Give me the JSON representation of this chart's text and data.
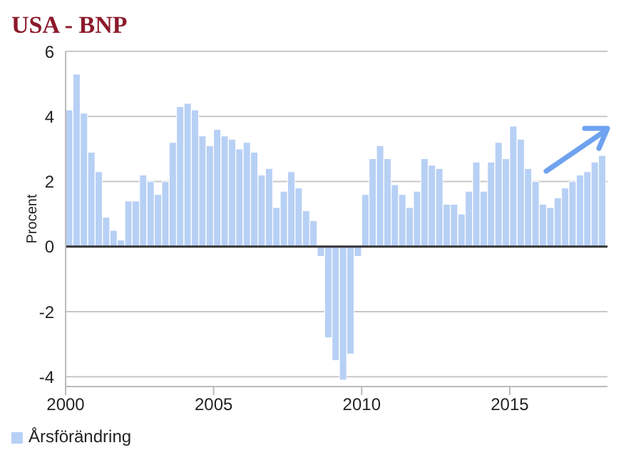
{
  "chart_data": {
    "type": "bar",
    "title": "USA - BNP",
    "ylabel": "Procent",
    "x": [
      2000.125,
      2000.375,
      2000.625,
      2000.875,
      2001.125,
      2001.375,
      2001.625,
      2001.875,
      2002.125,
      2002.375,
      2002.625,
      2002.875,
      2003.125,
      2003.375,
      2003.625,
      2003.875,
      2004.125,
      2004.375,
      2004.625,
      2004.875,
      2005.125,
      2005.375,
      2005.625,
      2005.875,
      2006.125,
      2006.375,
      2006.625,
      2006.875,
      2007.125,
      2007.375,
      2007.625,
      2007.875,
      2008.125,
      2008.375,
      2008.625,
      2008.875,
      2009.125,
      2009.375,
      2009.625,
      2009.875,
      2010.125,
      2010.375,
      2010.625,
      2010.875,
      2011.125,
      2011.375,
      2011.625,
      2011.875,
      2012.125,
      2012.375,
      2012.625,
      2012.875,
      2013.125,
      2013.375,
      2013.625,
      2013.875,
      2014.125,
      2014.375,
      2014.625,
      2014.875,
      2015.125,
      2015.375,
      2015.625,
      2015.875,
      2016.125,
      2016.375,
      2016.625,
      2016.875,
      2017.125,
      2017.375,
      2017.625,
      2017.875,
      2018.125
    ],
    "series": [
      {
        "name": "Årsförändring",
        "color": "#b7d0f5",
        "values": [
          4.2,
          5.3,
          4.1,
          2.9,
          2.3,
          0.9,
          0.5,
          0.2,
          1.4,
          1.4,
          2.2,
          2.0,
          1.6,
          2.0,
          3.2,
          4.3,
          4.4,
          4.2,
          3.4,
          3.1,
          3.6,
          3.4,
          3.3,
          3.0,
          3.2,
          2.9,
          2.2,
          2.4,
          1.2,
          1.7,
          2.3,
          1.8,
          1.1,
          0.8,
          -0.3,
          -2.8,
          -3.5,
          -4.1,
          -3.3,
          -0.3,
          1.6,
          2.7,
          3.1,
          2.7,
          1.9,
          1.6,
          1.2,
          1.7,
          2.7,
          2.5,
          2.4,
          1.3,
          1.3,
          1.0,
          1.7,
          2.6,
          1.7,
          2.6,
          3.2,
          2.7,
          3.7,
          3.3,
          2.4,
          2.0,
          1.3,
          1.2,
          1.5,
          1.8,
          2.0,
          2.2,
          2.3,
          2.6,
          2.8
        ]
      }
    ],
    "xlim": [
      2000,
      2018.3
    ],
    "xticks": [
      2000,
      2005,
      2010,
      2015
    ],
    "ylim": [
      -4.3,
      6
    ],
    "yticks": [
      -4,
      -2,
      0,
      2,
      4,
      6
    ],
    "ref_lines": [
      {
        "axis": "y",
        "value": 0,
        "color": "#333333"
      }
    ],
    "grid": "y",
    "legend": "bottom left"
  }
}
